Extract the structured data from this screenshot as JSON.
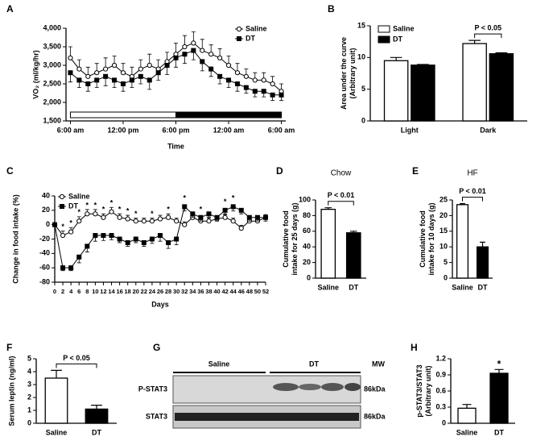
{
  "chart_data": [
    {
      "type": "line",
      "panel": "A",
      "y_label": [
        "VO₂ (ml/kg/hr)"
      ],
      "x_label": "Time",
      "x": [
        0,
        1,
        2,
        3,
        4,
        5,
        6,
        7,
        8,
        9,
        10,
        11,
        12,
        13,
        14,
        15,
        16,
        17,
        18,
        19,
        20,
        21,
        22,
        23,
        24
      ],
      "xlim": [
        -0.5,
        24.5
      ],
      "xticks": [
        {
          "value": 0,
          "label": "6:00 am"
        },
        {
          "value": 6,
          "label": "12:00 pm"
        },
        {
          "value": 12,
          "label": "6:00 pm"
        },
        {
          "value": 18,
          "label": "12:00 am"
        },
        {
          "value": 24,
          "label": "6:00 am"
        }
      ],
      "ylim": [
        1500,
        4000
      ],
      "yticks": [
        {
          "value": 1500,
          "label": "1,500"
        },
        {
          "value": 2000,
          "label": "2,000"
        },
        {
          "value": 2500,
          "label": "2,500"
        },
        {
          "value": 3000,
          "label": "3,000"
        },
        {
          "value": 3500,
          "label": "3,500"
        },
        {
          "value": 4000,
          "label": "4,000"
        }
      ],
      "series": [
        {
          "name": "Saline",
          "marker": "circle",
          "color": "#000000",
          "values": [
            3200,
            2900,
            2700,
            2800,
            2900,
            3000,
            2800,
            2700,
            2900,
            3000,
            2900,
            3100,
            3300,
            3500,
            3600,
            3400,
            3300,
            3200,
            3000,
            2800,
            2700,
            2600,
            2600,
            2500,
            2300
          ],
          "errors": [
            300,
            250,
            250,
            250,
            300,
            250,
            250,
            250,
            250,
            300,
            250,
            250,
            300,
            300,
            300,
            300,
            250,
            250,
            250,
            250,
            200,
            200,
            200,
            200,
            200
          ]
        },
        {
          "name": "DT",
          "marker": "square",
          "color": "#000000",
          "values": [
            2800,
            2600,
            2500,
            2600,
            2700,
            2600,
            2500,
            2600,
            2700,
            2600,
            2800,
            3000,
            3200,
            3300,
            3400,
            3100,
            2900,
            2700,
            2600,
            2500,
            2400,
            2300,
            2300,
            2200,
            2200
          ],
          "errors": [
            250,
            200,
            200,
            200,
            250,
            200,
            200,
            200,
            200,
            250,
            200,
            250,
            250,
            250,
            250,
            250,
            200,
            200,
            200,
            200,
            150,
            150,
            150,
            150,
            150
          ]
        }
      ]
    },
    {
      "type": "bar",
      "panel": "B",
      "y_label": [
        "Area under the curve",
        "(Arbitrary unit)"
      ],
      "categories": [
        "Light",
        "Dark"
      ],
      "ylim": [
        0,
        15
      ],
      "yticks": [
        0,
        5,
        10,
        15
      ],
      "series": [
        {
          "name": "Saline",
          "color": "#ffffff",
          "values": [
            9.5,
            12.2
          ],
          "errors": [
            0.5,
            0.5
          ]
        },
        {
          "name": "DT",
          "color": "#000000",
          "values": [
            8.8,
            10.6
          ],
          "errors": [
            0.1,
            0.15
          ]
        }
      ],
      "annotation": {
        "text": "P < 0.05",
        "category": 1
      }
    },
    {
      "type": "line",
      "panel": "C",
      "y_label": [
        "Change in food intake (%)"
      ],
      "x_label": "Days",
      "x": [
        0,
        2,
        4,
        6,
        8,
        10,
        12,
        14,
        16,
        18,
        20,
        22,
        24,
        26,
        28,
        30,
        32,
        34,
        36,
        38,
        40,
        42,
        44,
        46,
        48,
        50,
        52
      ],
      "xlim": [
        0,
        52
      ],
      "xticks": [
        0,
        2,
        4,
        6,
        8,
        10,
        12,
        14,
        16,
        18,
        20,
        22,
        24,
        26,
        28,
        30,
        32,
        34,
        36,
        38,
        40,
        42,
        44,
        46,
        48,
        50,
        52
      ],
      "ylim": [
        -80,
        40
      ],
      "yticks": [
        -80,
        -60,
        -40,
        -20,
        0,
        20,
        40
      ],
      "series": [
        {
          "name": "Saline",
          "marker": "circle",
          "color": "#000000",
          "values": [
            0,
            -15,
            -10,
            5,
            15,
            15,
            10,
            18,
            10,
            8,
            5,
            5,
            5,
            8,
            10,
            5,
            0,
            10,
            5,
            5,
            8,
            10,
            5,
            -5,
            5,
            5,
            10
          ],
          "errors": [
            0,
            6,
            6,
            6,
            6,
            6,
            5,
            6,
            5,
            5,
            4,
            4,
            4,
            5,
            5,
            4,
            4,
            5,
            4,
            4,
            4,
            5,
            4,
            4,
            4,
            4,
            4
          ]
        },
        {
          "name": "DT",
          "marker": "square",
          "color": "#000000",
          "values": [
            0,
            -60,
            -60,
            -45,
            -30,
            -15,
            -15,
            -15,
            -20,
            -25,
            -20,
            -25,
            -20,
            -15,
            -25,
            -20,
            25,
            15,
            10,
            15,
            10,
            20,
            25,
            20,
            10,
            10,
            10
          ],
          "errors": [
            0,
            4,
            4,
            8,
            8,
            8,
            7,
            6,
            5,
            5,
            5,
            5,
            6,
            8,
            8,
            8,
            6,
            5,
            5,
            5,
            5,
            6,
            6,
            5,
            5,
            5,
            5
          ]
        }
      ],
      "significance": {
        "label": "*",
        "x": [
          2,
          4,
          6,
          8,
          10,
          12,
          14,
          16,
          18,
          20,
          24,
          28,
          32,
          36,
          42,
          44
        ]
      }
    },
    {
      "type": "bar",
      "panel": "D",
      "title": "Chow",
      "y_label": [
        "Cumulative food",
        "intake for 25 days (g)"
      ],
      "categories": [
        "Saline",
        "DT"
      ],
      "values": [
        88,
        58
      ],
      "errors": [
        2,
        2
      ],
      "colors": [
        "#ffffff",
        "#000000"
      ],
      "ylim": [
        0,
        100
      ],
      "yticks": [
        0,
        20,
        40,
        60,
        80,
        100
      ],
      "annotation": {
        "text": "P < 0.01"
      }
    },
    {
      "type": "bar",
      "panel": "E",
      "title": "HF",
      "y_label": [
        "Cumulative food",
        "intake for 10 days (g)"
      ],
      "categories": [
        "Saline",
        "DT"
      ],
      "values": [
        23.5,
        10
      ],
      "errors": [
        0.3,
        1.5
      ],
      "colors": [
        "#ffffff",
        "#000000"
      ],
      "ylim": [
        0,
        25
      ],
      "yticks": [
        0,
        5,
        10,
        15,
        20,
        25
      ],
      "annotation": {
        "text": "P < 0.01"
      }
    },
    {
      "type": "bar",
      "panel": "F",
      "y_label": [
        "Serum leptin (ng/ml)"
      ],
      "categories": [
        "Saline",
        "DT"
      ],
      "values": [
        3.5,
        1.1
      ],
      "errors": [
        0.6,
        0.3
      ],
      "colors": [
        "#ffffff",
        "#000000"
      ],
      "ylim": [
        0,
        5
      ],
      "yticks": [
        0,
        1,
        2,
        3,
        4,
        5
      ],
      "annotation": {
        "text": "P < 0.05"
      }
    },
    {
      "type": "bar",
      "panel": "H",
      "y_label": [
        "p-STAT3/STAT3",
        "(Arbitrary unit)"
      ],
      "categories": [
        "Saline",
        "DT"
      ],
      "values": [
        0.28,
        0.93
      ],
      "errors": [
        0.07,
        0.07
      ],
      "colors": [
        "#ffffff",
        "#000000"
      ],
      "ylim": [
        0,
        1.2
      ],
      "yticks": [
        0,
        0.3,
        0.6,
        0.9,
        1.2
      ],
      "annotation": {
        "text": "*",
        "category": 1
      }
    }
  ],
  "blot": {
    "panel": "G",
    "groups": [
      "Saline",
      "DT"
    ],
    "mw_header": "MW",
    "rows": [
      {
        "label": "P-STAT3",
        "mw": "86kDa"
      },
      {
        "label": "STAT3",
        "mw": "86kDa"
      }
    ]
  }
}
